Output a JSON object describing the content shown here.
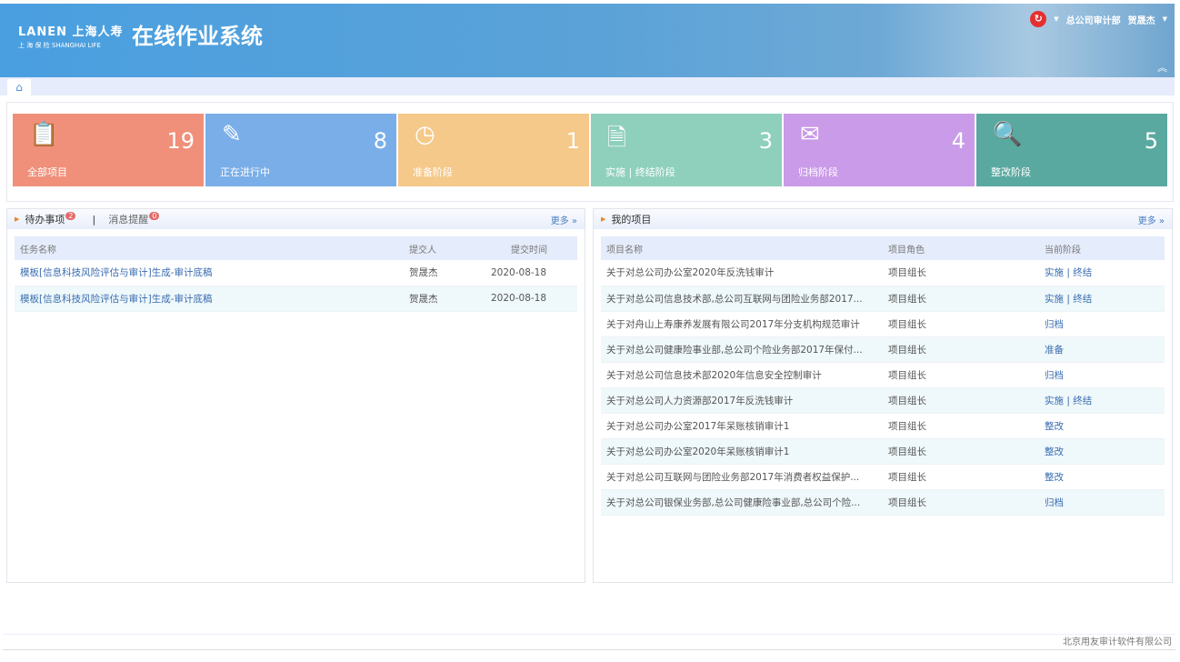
{
  "header": {
    "logo_en": "LANEN 上海人寿",
    "logo_sub": "上 海 保 险  SHANGHAI LIFE",
    "title": "在线作业系统",
    "department": "总公司审计部",
    "user": "贺晟杰"
  },
  "cards": [
    {
      "label": "全部项目",
      "count": "19",
      "color": "#f0907a",
      "icon": "clipboard-icon"
    },
    {
      "label": "正在进行中",
      "count": "8",
      "color": "#7aaee8",
      "icon": "edit-icon"
    },
    {
      "label": "准备阶段",
      "count": "1",
      "color": "#f5c98a",
      "icon": "clock-icon"
    },
    {
      "label": "实施 | 终结阶段",
      "count": "3",
      "color": "#8fd0bc",
      "icon": "document-edit-icon"
    },
    {
      "label": "归档阶段",
      "count": "4",
      "color": "#c99be8",
      "icon": "inbox-icon"
    },
    {
      "label": "整改阶段",
      "count": "5",
      "color": "#5aa9a0",
      "icon": "document-search-icon"
    }
  ],
  "todo": {
    "tab1": "待办事项",
    "tab1_badge": "2",
    "separator": "|",
    "tab2": "消息提醒",
    "tab2_badge": "0",
    "more": "更多 »",
    "columns": [
      "任务名称",
      "提交人",
      "提交时间"
    ],
    "rows": [
      [
        "模板[信息科技风险评估与审计]生成-审计底稿",
        "贺晟杰",
        "2020-08-18"
      ],
      [
        "模板[信息科技风险评估与审计]生成-审计底稿",
        "贺晟杰",
        "2020-08-18"
      ]
    ]
  },
  "projects": {
    "title": "我的项目",
    "more": "更多 »",
    "columns": [
      "项目名称",
      "项目角色",
      "当前阶段"
    ],
    "rows": [
      [
        "关于对总公司办公室2020年反洗钱审计",
        "项目组长",
        "实施 | 终结"
      ],
      [
        "关于对总公司信息技术部,总公司互联网与团险业务部2017...",
        "项目组长",
        "实施 | 终结"
      ],
      [
        "关于对舟山上寿康养发展有限公司2017年分支机构规范审计",
        "项目组长",
        "归档"
      ],
      [
        "关于对总公司健康险事业部,总公司个险业务部2017年保付...",
        "项目组长",
        "准备"
      ],
      [
        "关于对总公司信息技术部2020年信息安全控制审计",
        "项目组长",
        "归档"
      ],
      [
        "关于对总公司人力资源部2017年反洗钱审计",
        "项目组长",
        "实施 | 终结"
      ],
      [
        "关于对总公司办公室2017年呆账核销审计1",
        "项目组长",
        "整改"
      ],
      [
        "关于对总公司办公室2020年呆账核销审计1",
        "项目组长",
        "整改"
      ],
      [
        "关于对总公司互联网与团险业务部2017年消费者权益保护...",
        "项目组长",
        "整改"
      ],
      [
        "关于对总公司银保业务部,总公司健康险事业部,总公司个险...",
        "项目组长",
        "归档"
      ]
    ]
  },
  "footer": "北京用友审计软件有限公司"
}
